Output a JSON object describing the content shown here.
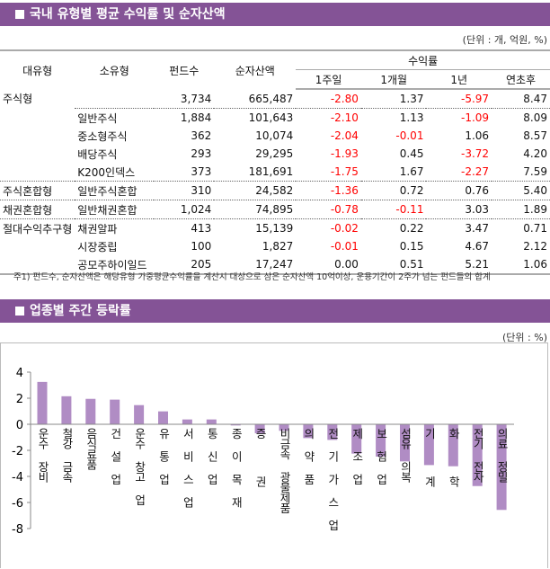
{
  "section1": {
    "title": "국내 유형별 평균 수익률 및 순자산액",
    "unit": "(단위 : 개, 억원, %)"
  },
  "table": {
    "headers": {
      "major": "대유형",
      "minor": "소유형",
      "funds": "펀드수",
      "assets": "순자산액",
      "returns": "수익률",
      "w1": "1주일",
      "m1": "1개월",
      "y1": "1년",
      "ytd": "연초후"
    },
    "rows": [
      {
        "major": "주식형",
        "minor": "",
        "funds": "3,734",
        "assets": "665,487",
        "w1": "-2.80",
        "m1": "1.37",
        "y1": "-5.97",
        "ytd": "8.47"
      },
      {
        "major": "",
        "minor": "일반주식",
        "funds": "1,884",
        "assets": "101,643",
        "w1": "-2.10",
        "m1": "1.13",
        "y1": "-1.09",
        "ytd": "8.09"
      },
      {
        "major": "",
        "minor": "중소형주식",
        "funds": "362",
        "assets": "10,074",
        "w1": "-2.04",
        "m1": "-0.01",
        "y1": "1.06",
        "ytd": "8.57"
      },
      {
        "major": "",
        "minor": "배당주식",
        "funds": "293",
        "assets": "29,295",
        "w1": "-1.93",
        "m1": "0.45",
        "y1": "-3.72",
        "ytd": "4.20"
      },
      {
        "major": "",
        "minor": "K200인덱스",
        "funds": "373",
        "assets": "181,691",
        "w1": "-1.75",
        "m1": "1.67",
        "y1": "-2.27",
        "ytd": "7.59"
      },
      {
        "major": "주식혼합형",
        "minor": "일반주식혼합",
        "funds": "310",
        "assets": "24,582",
        "w1": "-1.36",
        "m1": "0.72",
        "y1": "0.76",
        "ytd": "5.40"
      },
      {
        "major": "채권혼합형",
        "minor": "일반채권혼합",
        "funds": "1,024",
        "assets": "74,895",
        "w1": "-0.78",
        "m1": "-0.11",
        "y1": "3.03",
        "ytd": "1.89"
      },
      {
        "major": "절대수익추구형",
        "minor": "채권알파",
        "funds": "413",
        "assets": "15,139",
        "w1": "-0.02",
        "m1": "0.22",
        "y1": "3.47",
        "ytd": "0.71"
      },
      {
        "major": "",
        "minor": "시장중립",
        "funds": "100",
        "assets": "1,827",
        "w1": "-0.01",
        "m1": "0.15",
        "y1": "4.67",
        "ytd": "2.12"
      },
      {
        "major": "",
        "minor": "공모주하이일드",
        "funds": "205",
        "assets": "17,247",
        "w1": "0.00",
        "m1": "0.51",
        "y1": "5.21",
        "ytd": "1.06"
      }
    ],
    "note": "주1) 펀드수, 순자산액은 해당유형 가중평균수익률을 계산시 대상으로 삼은 순자산액 10억이상, 운용기간이 2주가 넘는 펀드들의 합계"
  },
  "section2": {
    "title": "업종별 주간 등락률",
    "unit": "(단위 : %)"
  },
  "colors": {
    "header": "#845396",
    "bar": "#b08cc4",
    "negative": "#ff0000"
  },
  "chart_data": {
    "type": "bar",
    "categories": [
      "운수 장비",
      "철강 금속",
      "음식료품",
      "건 설 업",
      "운수 창고 업",
      "유 통 업",
      "서 비 스 업",
      "통 신 업",
      "종 이 목 재",
      "증   권",
      "비금속 광물제품",
      "의 약 품",
      "전 기 가 스 업",
      "제 조 업",
      "보 험 업",
      "섬유 의복",
      "기   계",
      "화   학",
      "전기 전자",
      "의료 정밀"
    ],
    "values": [
      3.25,
      2.15,
      1.95,
      1.89,
      1.47,
      0.99,
      0.37,
      0.37,
      -0.09,
      -0.69,
      -0.5,
      -1.06,
      -1.2,
      -2.25,
      -2.48,
      -2.85,
      -3.13,
      -3.22,
      -4.74,
      -6.57
    ],
    "ylim": [
      -8,
      4
    ],
    "yticks": [
      4,
      2,
      0,
      -2,
      -4,
      -6,
      -8
    ],
    "grid": false
  }
}
